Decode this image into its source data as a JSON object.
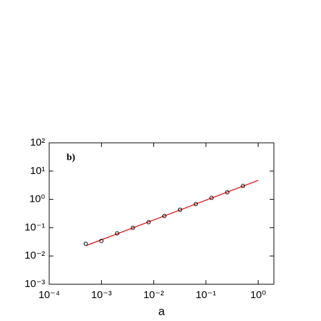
{
  "chart_data": {
    "type": "scatter",
    "annotation": "b)",
    "xlabel": "a",
    "xscale": "log",
    "yscale": "log",
    "xlim": [
      0.0001,
      2
    ],
    "ylim": [
      0.001,
      100
    ],
    "xticks": [
      {
        "value": 0.0001,
        "label": "10⁻⁴"
      },
      {
        "value": 0.001,
        "label": "10⁻³"
      },
      {
        "value": 0.01,
        "label": "10⁻²"
      },
      {
        "value": 0.1,
        "label": "10⁻¹"
      },
      {
        "value": 1,
        "label": "10⁰"
      }
    ],
    "yticks": [
      {
        "value": 0.001,
        "label": "10⁻³"
      },
      {
        "value": 0.01,
        "label": "10⁻²"
      },
      {
        "value": 0.1,
        "label": "10⁻¹"
      },
      {
        "value": 1,
        "label": "10⁰"
      },
      {
        "value": 10,
        "label": "10¹"
      },
      {
        "value": 100,
        "label": "10²"
      }
    ],
    "x": [
      0.0005,
      0.001,
      0.002,
      0.004,
      0.008,
      0.016,
      0.032,
      0.064,
      0.128,
      0.256,
      0.512
    ],
    "values": [
      0.027,
      0.034,
      0.063,
      0.099,
      0.156,
      0.26,
      0.43,
      0.68,
      1.13,
      1.78,
      2.97
    ],
    "marker_color": "#000000",
    "fit": {
      "x": [
        0.0005,
        1
      ],
      "values": [
        0.023,
        4.7
      ],
      "color": "#e00000"
    }
  }
}
